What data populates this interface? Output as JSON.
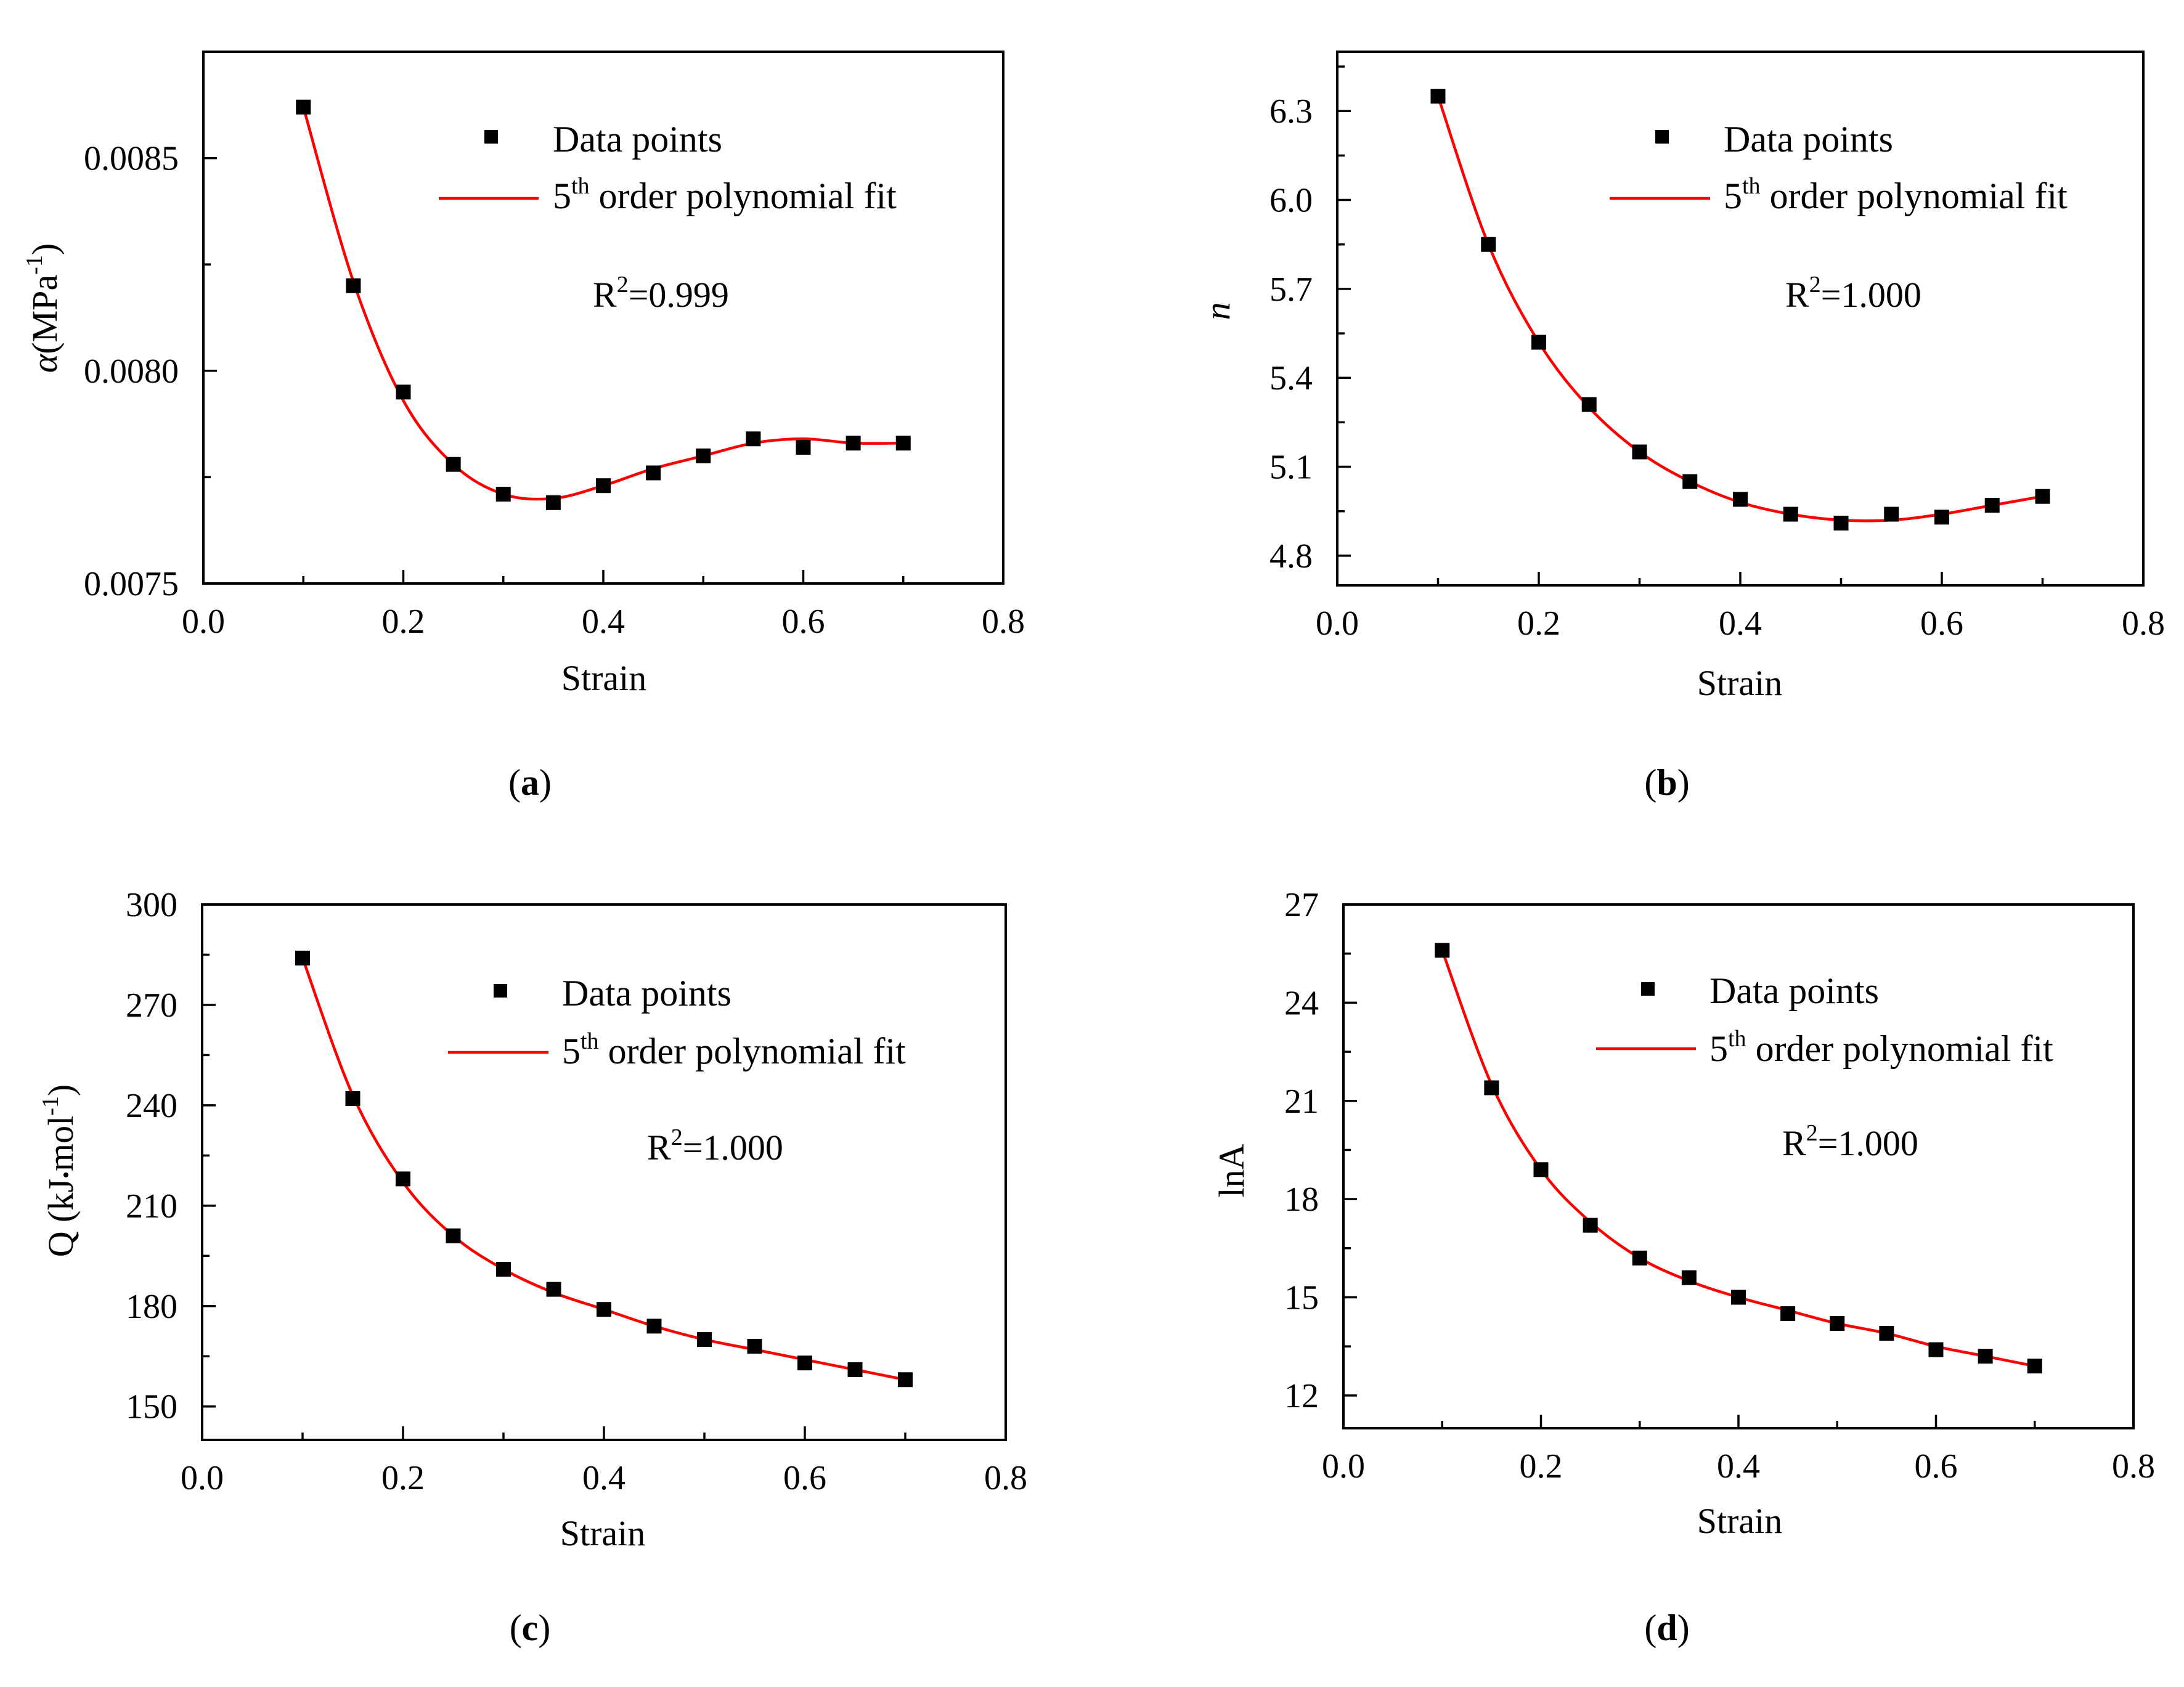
{
  "chart_data": [
    {
      "id": "a",
      "type": "scatter",
      "caption": "(a)",
      "xlabel": "Strain",
      "ylabel_main": "(MPa",
      "ylabel_symbol": "α",
      "ylabel_sup": "-1",
      "ylabel_close": ")",
      "xlim": [
        0.0,
        0.8
      ],
      "ylim": [
        0.0075,
        0.00875
      ],
      "xticks": [
        0.0,
        0.2,
        0.4,
        0.6,
        0.8
      ],
      "xtick_labels": [
        "0.0",
        "0.2",
        "0.4",
        "0.6",
        "0.8"
      ],
      "yticks": [
        0.0075,
        0.008,
        0.0085
      ],
      "ytick_labels": [
        "0.0075",
        "0.0080",
        "0.0085"
      ],
      "legend": {
        "points": "Data points",
        "fit_prefix": "5",
        "fit_sup": "th",
        "fit_suffix": " order polynomial fit"
      },
      "r2_prefix": "R",
      "r2_sup": "2",
      "r2_value": "=0.999",
      "x": [
        0.1,
        0.15,
        0.2,
        0.25,
        0.3,
        0.35,
        0.4,
        0.45,
        0.5,
        0.55,
        0.6,
        0.65,
        0.7
      ],
      "y": [
        0.00862,
        0.0082,
        0.00795,
        0.00778,
        0.00771,
        0.00769,
        0.00773,
        0.00776,
        0.0078,
        0.00784,
        0.00782,
        0.00783,
        0.00783
      ],
      "fit": [
        0.00862,
        0.00821,
        0.00793,
        0.00778,
        0.00771,
        0.0077,
        0.00773,
        0.00777,
        0.0078,
        0.00783,
        0.00784,
        0.00783,
        0.00783
      ]
    },
    {
      "id": "b",
      "type": "scatter",
      "caption": "(b)",
      "xlabel": "Strain",
      "ylabel_symbol": "n",
      "xlim": [
        0.0,
        0.8
      ],
      "ylim": [
        4.7,
        6.5
      ],
      "xticks": [
        0.0,
        0.2,
        0.4,
        0.6,
        0.8
      ],
      "xtick_labels": [
        "0.0",
        "0.2",
        "0.4",
        "0.6",
        "0.8"
      ],
      "yticks": [
        4.8,
        5.1,
        5.4,
        5.7,
        6.0,
        6.3
      ],
      "ytick_labels": [
        "4.8",
        "5.1",
        "5.4",
        "5.7",
        "6.0",
        "6.3"
      ],
      "legend": {
        "points": "Data points",
        "fit_prefix": "5",
        "fit_sup": "th",
        "fit_suffix": " order polynomial fit"
      },
      "r2_prefix": "R",
      "r2_sup": "2",
      "r2_value": "=1.000",
      "x": [
        0.1,
        0.15,
        0.2,
        0.25,
        0.3,
        0.35,
        0.4,
        0.45,
        0.5,
        0.55,
        0.6,
        0.65,
        0.7
      ],
      "y": [
        6.35,
        5.85,
        5.52,
        5.31,
        5.15,
        5.05,
        4.99,
        4.94,
        4.91,
        4.94,
        4.93,
        4.97,
        5.0
      ],
      "fit": [
        6.35,
        5.85,
        5.52,
        5.3,
        5.15,
        5.05,
        4.98,
        4.94,
        4.92,
        4.92,
        4.94,
        4.97,
        5.0
      ]
    },
    {
      "id": "c",
      "type": "scatter",
      "caption": "(c)",
      "xlabel": "Strain",
      "ylabel_main": "Q (kJ",
      "ylabel_mid": "mol",
      "ylabel_sup": "-1",
      "ylabel_close": ")",
      "xlim": [
        0.0,
        0.8
      ],
      "ylim": [
        140,
        300
      ],
      "xticks": [
        0.0,
        0.2,
        0.4,
        0.6,
        0.8
      ],
      "xtick_labels": [
        "0.0",
        "0.2",
        "0.4",
        "0.6",
        "0.8"
      ],
      "yticks": [
        150,
        180,
        210,
        240,
        270,
        300
      ],
      "ytick_labels": [
        "150",
        "180",
        "210",
        "240",
        "270",
        "300"
      ],
      "legend": {
        "points": "Data points",
        "fit_prefix": "5",
        "fit_sup": "th",
        "fit_suffix": " order polynomial fit"
      },
      "r2_prefix": "R",
      "r2_sup": "2",
      "r2_value": "=1.000",
      "x": [
        0.1,
        0.15,
        0.2,
        0.25,
        0.3,
        0.35,
        0.4,
        0.45,
        0.5,
        0.55,
        0.6,
        0.65,
        0.7
      ],
      "y": [
        284,
        242,
        218,
        201,
        191,
        185,
        179,
        174,
        170,
        168,
        163,
        161,
        158
      ],
      "fit": [
        284,
        243,
        217,
        201,
        191,
        184,
        179,
        174,
        170,
        167,
        164,
        161,
        158
      ]
    },
    {
      "id": "d",
      "type": "scatter",
      "caption": "(d)",
      "xlabel": "Strain",
      "ylabel_main": "lnA",
      "xlim": [
        0.0,
        0.8
      ],
      "ylim": [
        11,
        27
      ],
      "xticks": [
        0.0,
        0.2,
        0.4,
        0.6,
        0.8
      ],
      "xtick_labels": [
        "0.0",
        "0.2",
        "0.4",
        "0.6",
        "0.8"
      ],
      "yticks": [
        12,
        15,
        18,
        21,
        24,
        27
      ],
      "ytick_labels": [
        "12",
        "15",
        "18",
        "21",
        "24",
        "27"
      ],
      "legend": {
        "points": "Data points",
        "fit_prefix": "5",
        "fit_sup": "th",
        "fit_suffix": " order polynomial fit"
      },
      "r2_prefix": "R",
      "r2_sup": "2",
      "r2_value": "=1.000",
      "x": [
        0.1,
        0.15,
        0.2,
        0.25,
        0.3,
        0.35,
        0.4,
        0.45,
        0.5,
        0.55,
        0.6,
        0.65,
        0.7
      ],
      "y": [
        25.6,
        21.4,
        18.9,
        17.2,
        16.2,
        15.6,
        15.0,
        14.5,
        14.2,
        13.9,
        13.4,
        13.2,
        12.9
      ],
      "fit": [
        25.6,
        21.5,
        18.9,
        17.3,
        16.2,
        15.5,
        15.0,
        14.6,
        14.2,
        13.9,
        13.5,
        13.2,
        12.9
      ]
    }
  ]
}
